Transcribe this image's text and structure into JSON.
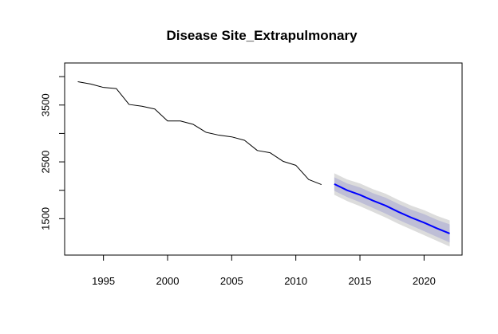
{
  "chart_data": {
    "type": "line",
    "title": "Disease Site_Extrapulmonary",
    "xlabel": "",
    "ylabel": "",
    "xlim": [
      1993,
      2022
    ],
    "ylim": [
      1000,
      4100
    ],
    "x_ticks": [
      1995,
      2000,
      2005,
      2010,
      2015,
      2020
    ],
    "y_ticks": [
      1500,
      2500,
      3500
    ],
    "y_ticks_minor": [
      2000,
      3000,
      4000
    ],
    "series": [
      {
        "name": "observed",
        "color": "#000000",
        "x": [
          1993,
          1994,
          1995,
          1996,
          1997,
          1998,
          1999,
          2000,
          2001,
          2002,
          2003,
          2004,
          2005,
          2006,
          2007,
          2008,
          2009,
          2010,
          2011,
          2012
        ],
        "values": [
          3910,
          3870,
          3810,
          3790,
          3510,
          3480,
          3430,
          3220,
          3220,
          3160,
          3020,
          2970,
          2940,
          2880,
          2700,
          2660,
          2510,
          2440,
          2190,
          2100
        ]
      },
      {
        "name": "forecast",
        "color": "#0000ff",
        "x": [
          2013,
          2014,
          2015,
          2016,
          2017,
          2018,
          2019,
          2020,
          2021,
          2022
        ],
        "values": [
          2110,
          2000,
          1920,
          1820,
          1730,
          1620,
          1520,
          1430,
          1330,
          1240
        ],
        "lo80": [
          1990,
          1880,
          1790,
          1690,
          1590,
          1480,
          1380,
          1280,
          1180,
          1080
        ],
        "hi80": [
          2230,
          2120,
          2050,
          1950,
          1870,
          1760,
          1660,
          1580,
          1480,
          1400
        ],
        "lo95": [
          1920,
          1810,
          1720,
          1620,
          1520,
          1410,
          1310,
          1210,
          1110,
          1010
        ],
        "hi95": [
          2300,
          2190,
          2120,
          2020,
          1940,
          1830,
          1730,
          1650,
          1550,
          1470
        ],
        "band80_color": "#bebed6",
        "band95_color": "#dcdcdc"
      }
    ]
  }
}
